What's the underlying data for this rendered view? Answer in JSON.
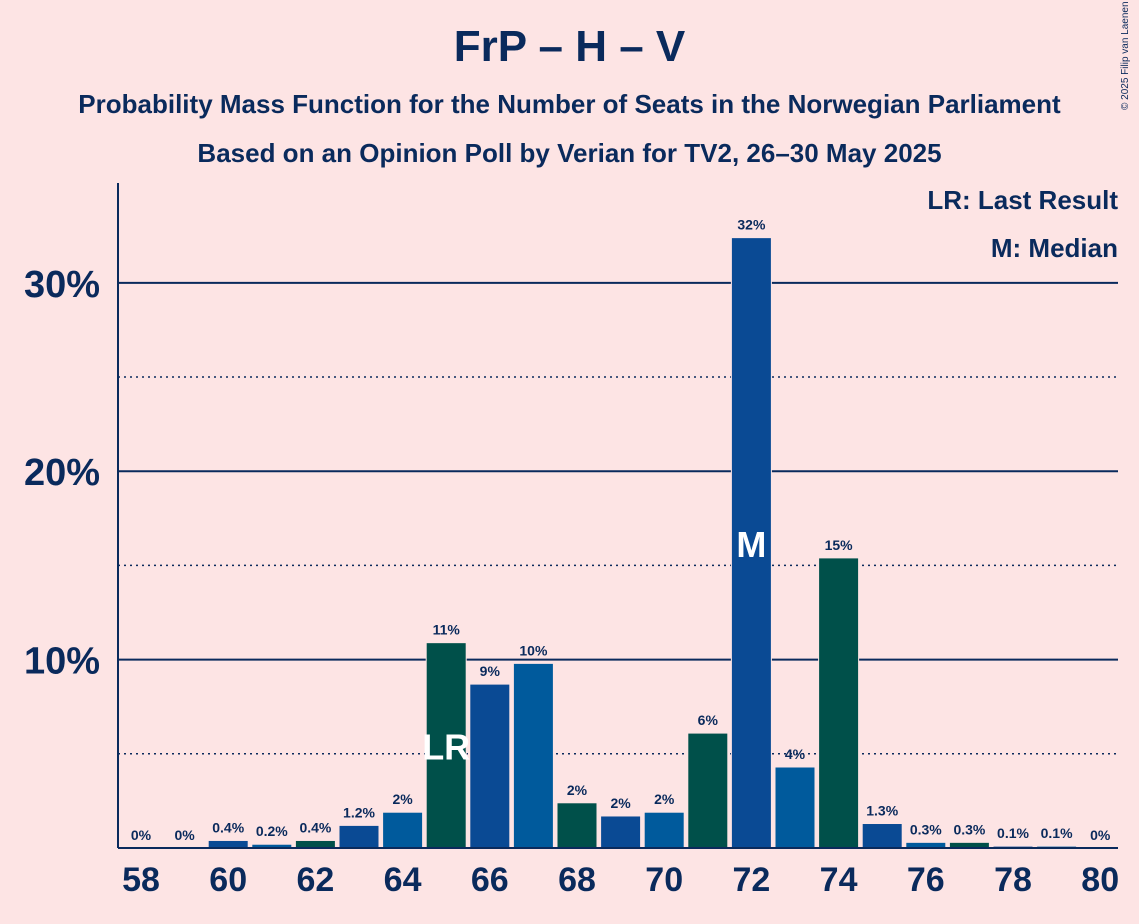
{
  "title": "FrP – H – V",
  "subtitle": "Probability Mass Function for the Number of Seats in the Norwegian Parliament",
  "subtitle2": "Based on an Opinion Poll by Verian for TV2, 26–30 May 2025",
  "copyright": "© 2025 Filip van Laenen",
  "legend": {
    "last_result": "LR: Last Result",
    "median": "M: Median"
  },
  "colors": {
    "background": "#fde4e4",
    "text": "#0a2a5c",
    "bar_blue": "#0a4a94",
    "bar_teal": "#00504a",
    "bar_mid_blue": "#005a9c",
    "gridline": "#0a2a5c"
  },
  "chart_data": {
    "type": "bar",
    "x": [
      58,
      59,
      60,
      61,
      62,
      63,
      64,
      65,
      66,
      67,
      68,
      69,
      70,
      71,
      72,
      73,
      74,
      75,
      76,
      77,
      78,
      79,
      80
    ],
    "values": [
      0,
      0,
      0.4,
      0.2,
      0.4,
      1.2,
      1.9,
      10.9,
      8.7,
      9.8,
      2.4,
      1.7,
      1.9,
      6.1,
      32.4,
      4.3,
      15.4,
      1.3,
      0.3,
      0.3,
      0.1,
      0.1,
      0
    ],
    "data_labels": [
      "0%",
      "0%",
      "0.4%",
      "0.2%",
      "0.4%",
      "1.2%",
      "2%",
      "11%",
      "9%",
      "10%",
      "2%",
      "2%",
      "2%",
      "6%",
      "32%",
      "4%",
      "15%",
      "1.3%",
      "0.3%",
      "0.3%",
      "0.1%",
      "0.1%",
      "0%"
    ],
    "bar_colors": [
      "#0a4a94",
      "#0a4a94",
      "#0a4a94",
      "#005a9c",
      "#00504a",
      "#0a4a94",
      "#005a9c",
      "#00504a",
      "#0a4a94",
      "#005a9c",
      "#00504a",
      "#0a4a94",
      "#005a9c",
      "#00504a",
      "#0a4a94",
      "#005a9c",
      "#00504a",
      "#0a4a94",
      "#005a9c",
      "#00504a",
      "#0a4a94",
      "#005a9c",
      "#00504a"
    ],
    "x_tick_labels": [
      "58",
      "60",
      "62",
      "64",
      "66",
      "68",
      "70",
      "72",
      "74",
      "76",
      "78",
      "80"
    ],
    "y_tick_labels": [
      "10%",
      "20%",
      "30%"
    ],
    "y_ticks": [
      10,
      20,
      30
    ],
    "y_minor_ticks": [
      5,
      15,
      25
    ],
    "ylim": [
      0,
      35.3
    ],
    "last_result_seat": 65,
    "last_result_marker": "LR",
    "median_seat": 72,
    "median_marker": "M",
    "grid": true,
    "legend_position": "top-right"
  }
}
